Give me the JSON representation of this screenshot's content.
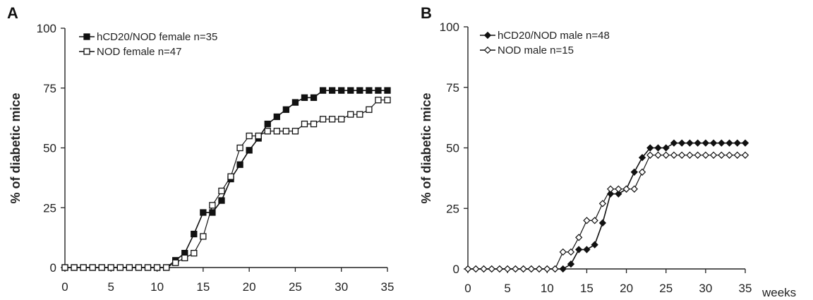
{
  "chart_data": [
    {
      "panel": "A",
      "type": "line",
      "ylabel": "% of diabetic mice",
      "xlabel": "",
      "xlim": [
        0,
        35
      ],
      "ylim": [
        0,
        100
      ],
      "xticks": [
        0,
        5,
        10,
        15,
        20,
        25,
        30,
        35
      ],
      "yticks": [
        0,
        25,
        50,
        75,
        100
      ],
      "legend_placement": "top-left",
      "series": [
        {
          "name": "hCD20/NOD female n=35",
          "marker": "filled-square",
          "x": [
            0,
            1,
            2,
            3,
            4,
            5,
            6,
            7,
            8,
            9,
            10,
            11,
            12,
            13,
            14,
            15,
            16,
            17,
            18,
            19,
            20,
            21,
            22,
            23,
            24,
            25,
            26,
            27,
            28,
            29,
            30,
            31,
            32,
            33,
            34,
            35
          ],
          "y": [
            0,
            0,
            0,
            0,
            0,
            0,
            0,
            0,
            0,
            0,
            0,
            0,
            3,
            6,
            14,
            23,
            23,
            28,
            37,
            43,
            49,
            54,
            60,
            63,
            66,
            69,
            71,
            71,
            74,
            74,
            74,
            74,
            74,
            74,
            74,
            74
          ]
        },
        {
          "name": "NOD female n=47",
          "marker": "open-square",
          "x": [
            0,
            1,
            2,
            3,
            4,
            5,
            6,
            7,
            8,
            9,
            10,
            11,
            12,
            13,
            14,
            15,
            16,
            17,
            18,
            19,
            20,
            21,
            22,
            23,
            24,
            25,
            26,
            27,
            28,
            29,
            30,
            31,
            32,
            33,
            34,
            35
          ],
          "y": [
            0,
            0,
            0,
            0,
            0,
            0,
            0,
            0,
            0,
            0,
            0,
            0,
            2,
            4,
            6,
            13,
            26,
            32,
            38,
            50,
            55,
            55,
            57,
            57,
            57,
            57,
            60,
            60,
            62,
            62,
            62,
            64,
            64,
            66,
            70,
            70
          ]
        }
      ]
    },
    {
      "panel": "B",
      "type": "line",
      "ylabel": "% of diabetic mice",
      "xlabel": "weeks",
      "xlim": [
        0,
        35
      ],
      "ylim": [
        0,
        100
      ],
      "xticks": [
        0,
        5,
        10,
        15,
        20,
        25,
        30,
        35
      ],
      "yticks": [
        0,
        25,
        50,
        75,
        100
      ],
      "legend_placement": "top-left",
      "series": [
        {
          "name": "hCD20/NOD male n=48",
          "marker": "filled-diamond",
          "x": [
            0,
            1,
            2,
            3,
            4,
            5,
            6,
            7,
            8,
            9,
            10,
            11,
            12,
            13,
            14,
            15,
            16,
            17,
            18,
            19,
            20,
            21,
            22,
            23,
            24,
            25,
            26,
            27,
            28,
            29,
            30,
            31,
            32,
            33,
            34,
            35
          ],
          "y": [
            0,
            0,
            0,
            0,
            0,
            0,
            0,
            0,
            0,
            0,
            0,
            0,
            0,
            2,
            8,
            8,
            10,
            19,
            31,
            31,
            33,
            40,
            46,
            50,
            50,
            50,
            52,
            52,
            52,
            52,
            52,
            52,
            52,
            52,
            52,
            52
          ]
        },
        {
          "name": "NOD male n=15",
          "marker": "open-diamond",
          "x": [
            0,
            1,
            2,
            3,
            4,
            5,
            6,
            7,
            8,
            9,
            10,
            11,
            12,
            13,
            14,
            15,
            16,
            17,
            18,
            19,
            20,
            21,
            22,
            23,
            24,
            25,
            26,
            27,
            28,
            29,
            30,
            31,
            32,
            33,
            34,
            35
          ],
          "y": [
            0,
            0,
            0,
            0,
            0,
            0,
            0,
            0,
            0,
            0,
            0,
            0,
            7,
            7,
            13,
            20,
            20,
            27,
            33,
            33,
            33,
            33,
            40,
            47,
            47,
            47,
            47,
            47,
            47,
            47,
            47,
            47,
            47,
            47,
            47,
            47
          ]
        }
      ]
    }
  ]
}
